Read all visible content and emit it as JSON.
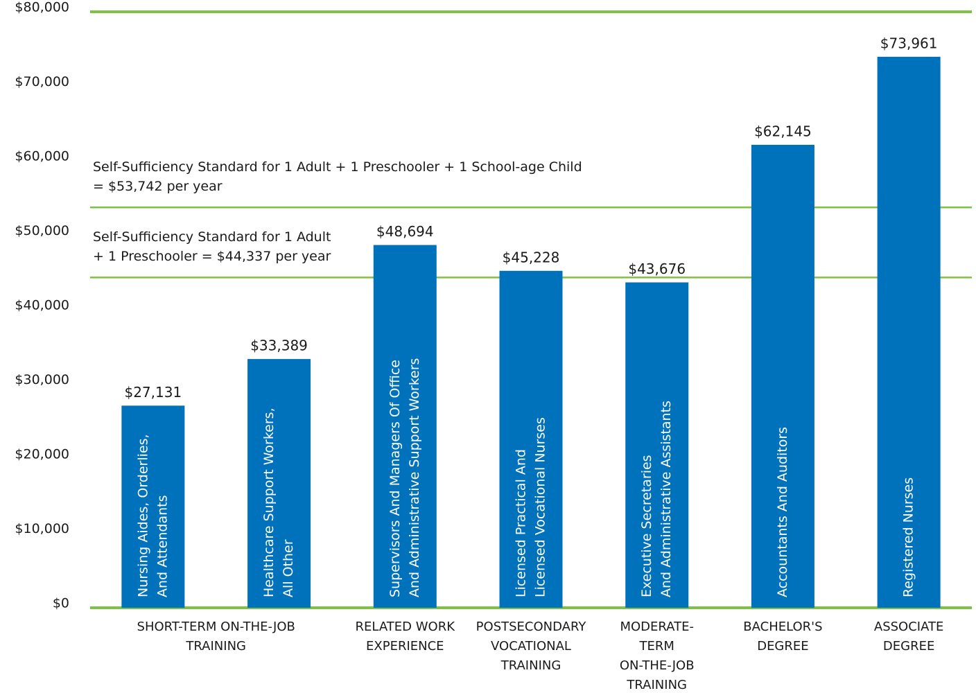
{
  "chart_data": {
    "type": "bar",
    "color": "#0072bc",
    "line_color": "#7dc242",
    "categories": [
      [
        "Nursing Aides, Orderlies,",
        "And Attendants"
      ],
      [
        "Healthcare Support Workers,",
        "All Other"
      ],
      [
        "Supervisors And Managers Of Office",
        "And Administrative Support Workers"
      ],
      [
        "Licensed Practical And",
        "Licensed Vocational Nurses"
      ],
      [
        "Executive Secretaries",
        "And Administrative Assistants"
      ],
      [
        "Accountants And Auditors"
      ],
      [
        "Registered Nurses"
      ]
    ],
    "values": [
      27131,
      33389,
      48694,
      45228,
      43676,
      62145,
      73961
    ],
    "value_labels": [
      "$27,131",
      "$33,389",
      "$48,694",
      "$45,228",
      "$43,676",
      "$62,145",
      "$73,961"
    ],
    "groups": [
      {
        "label": [
          "SHORT-TERM ON-THE-JOB",
          "TRAINING"
        ],
        "size": 2
      },
      {
        "label": [
          "RELATED WORK",
          "EXPERIENCE"
        ],
        "size": 1
      },
      {
        "label": [
          "POSTSECONDARY",
          "VOCATIONAL",
          "TRAINING"
        ],
        "size": 1
      },
      {
        "label": [
          "MODERATE-",
          "TERM",
          "ON-THE-JOB",
          "TRAINING"
        ],
        "size": 1
      },
      {
        "label": [
          "BACHELOR'S",
          "DEGREE"
        ],
        "size": 1
      },
      {
        "label": [
          "ASSOCIATE",
          "DEGREE"
        ],
        "size": 1
      }
    ],
    "reference_lines": [
      {
        "value": 53742,
        "label": [
          "Self-Sufficiency Standard for 1 Adult + 1 Preschooler + 1 School-age Child",
          "= $53,742 per year"
        ]
      },
      {
        "value": 44337,
        "label": [
          "Self-Sufficiency Standard for 1 Adult",
          "+ 1 Preschooler = $44,337 per year"
        ]
      }
    ],
    "ylim": [
      0,
      80000
    ],
    "yticks": [
      {
        "value": 0,
        "label": "$0"
      },
      {
        "value": 10000,
        "label": "$10,000"
      },
      {
        "value": 20000,
        "label": "$20,000"
      },
      {
        "value": 30000,
        "label": "$30,000"
      },
      {
        "value": 40000,
        "label": "$40,000"
      },
      {
        "value": 50000,
        "label": "$50,000"
      },
      {
        "value": 60000,
        "label": "$60,000"
      },
      {
        "value": 70000,
        "label": "$70,000"
      },
      {
        "value": 80000,
        "label": "$80,000"
      }
    ]
  }
}
